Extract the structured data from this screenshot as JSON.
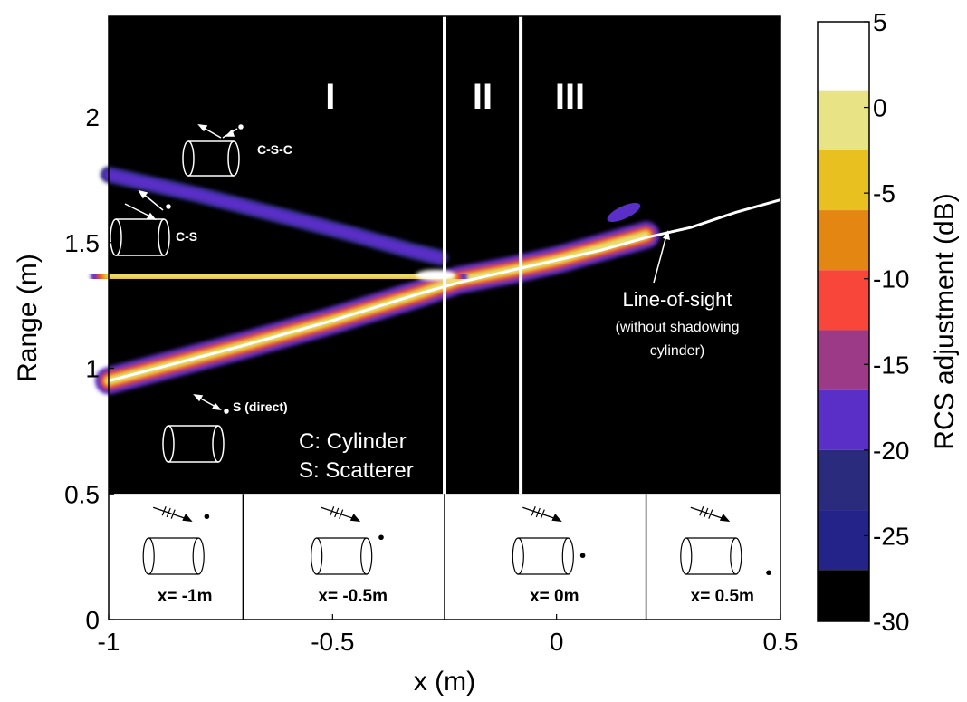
{
  "chart_data": {
    "type": "heatmap",
    "xlabel": "x (m)",
    "ylabel": "Range (m)",
    "xlim": [
      -1,
      0.5
    ],
    "ylim": [
      0,
      2.4
    ],
    "x_ticks": [
      "-1",
      "-0.5",
      "0",
      "0.5"
    ],
    "y_ticks": [
      "0",
      "0.5",
      "1",
      "1.5",
      "2"
    ],
    "colorbar": {
      "label": "RCS adjustment (dB)",
      "range": [
        -30,
        5
      ],
      "ticks": [
        "5",
        "0",
        "-5",
        "-10",
        "-15",
        "-20",
        "-25",
        "-30"
      ],
      "bands": [
        {
          "from": 1,
          "to": 5,
          "color": "#ffffff"
        },
        {
          "from": -2.5,
          "to": 1,
          "color": "#e8e486"
        },
        {
          "from": -6,
          "to": -2.5,
          "color": "#e8c020"
        },
        {
          "from": -9.5,
          "to": -6,
          "color": "#e38712"
        },
        {
          "from": -13,
          "to": -9.5,
          "color": "#f9463a"
        },
        {
          "from": -16.5,
          "to": -13,
          "color": "#9c3a87"
        },
        {
          "from": -20,
          "to": -16.5,
          "color": "#5a2fc7"
        },
        {
          "from": -23.5,
          "to": -20,
          "color": "#2b2b7d"
        },
        {
          "from": -27,
          "to": -23.5,
          "color": "#24238a"
        },
        {
          "from": -30,
          "to": -27,
          "color": "#000000"
        }
      ]
    },
    "regions": [
      "I",
      "II",
      "III"
    ],
    "region_boundaries_x": [
      -0.25,
      -0.08
    ],
    "traces": [
      {
        "name": "S (direct)",
        "points": [
          [
            -1,
            0.95
          ],
          [
            -0.7,
            1.09
          ],
          [
            -0.5,
            1.19
          ],
          [
            -0.3,
            1.3
          ],
          [
            -0.22,
            1.35
          ],
          [
            -0.1,
            1.39
          ],
          [
            0,
            1.43
          ],
          [
            0.1,
            1.48
          ],
          [
            0.2,
            1.53
          ]
        ]
      },
      {
        "name": "C-S",
        "points": [
          [
            -1,
            1.37
          ],
          [
            -0.8,
            1.37
          ],
          [
            -0.6,
            1.37
          ],
          [
            -0.45,
            1.37
          ],
          [
            -0.3,
            1.37
          ],
          [
            -0.24,
            1.36
          ]
        ]
      },
      {
        "name": "C-S-C",
        "points": [
          [
            -1,
            1.77
          ],
          [
            -0.8,
            1.69
          ],
          [
            -0.6,
            1.6
          ],
          [
            -0.45,
            1.53
          ],
          [
            -0.33,
            1.47
          ],
          [
            -0.26,
            1.44
          ]
        ]
      },
      {
        "name": "blob",
        "points": [
          [
            0.15,
            1.62
          ]
        ]
      }
    ],
    "line_of_sight": [
      [
        -1,
        0.95
      ],
      [
        -0.7,
        1.09
      ],
      [
        -0.5,
        1.19
      ],
      [
        -0.3,
        1.3
      ],
      [
        -0.22,
        1.34
      ],
      [
        -0.1,
        1.39
      ],
      [
        0,
        1.43
      ],
      [
        0.1,
        1.47
      ],
      [
        0.2,
        1.52
      ],
      [
        0.3,
        1.56
      ],
      [
        0.4,
        1.62
      ],
      [
        0.5,
        1.67
      ]
    ],
    "annotations": {
      "line_of_sight_label": "Line-of-sight",
      "line_of_sight_sub1": "(without shadowing",
      "line_of_sight_sub2": "cylinder)",
      "label_csc": "C-S-C",
      "label_cs": "C-S",
      "label_s": "S (direct)",
      "legend_c": "C: Cylinder",
      "legend_s": "S: Scatterer"
    },
    "panels": [
      {
        "caption": "x= -1m",
        "x_from": -1,
        "x_to": -0.7
      },
      {
        "caption": "x= -0.5m",
        "x_from": -0.7,
        "x_to": -0.25
      },
      {
        "caption": "x= 0m",
        "x_from": -0.25,
        "x_to": 0.2
      },
      {
        "caption": "x= 0.5m",
        "x_from": 0.2,
        "x_to": 0.5
      }
    ]
  }
}
